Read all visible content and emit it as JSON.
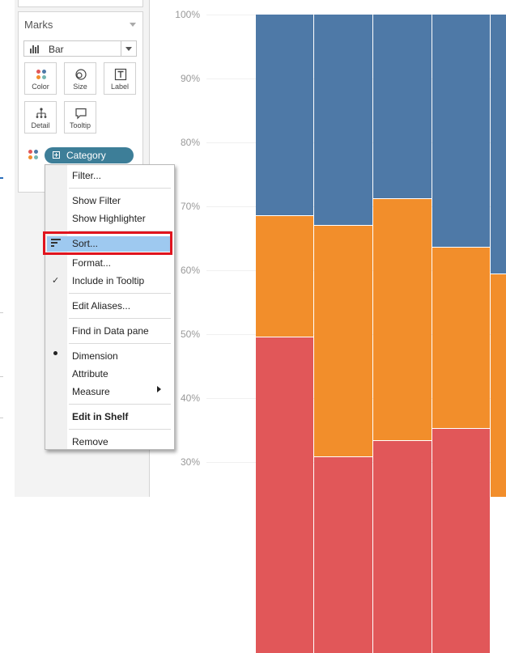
{
  "marks": {
    "title": "Marks",
    "mark_type": "Bar",
    "buttons": {
      "color": "Color",
      "size": "Size",
      "label": "Label",
      "detail": "Detail",
      "tooltip": "Tooltip"
    },
    "pill_label": "Category"
  },
  "context_menu": {
    "items": [
      "Filter...",
      "Show Filter",
      "Show Highlighter",
      "Sort...",
      "Format...",
      "Include in Tooltip",
      "Edit Aliases...",
      "Find in Data pane",
      "Dimension",
      "Attribute",
      "Measure",
      "Edit in Shelf",
      "Remove"
    ],
    "highlighted": "Sort..."
  },
  "colors": {
    "blue": "#4e79a7",
    "orange": "#f28e2b",
    "red": "#e15759",
    "pill": "#3d7e98",
    "highlight": "#9ec9f0",
    "callout": "#e0141e"
  },
  "chart_data": {
    "type": "bar",
    "stacked": true,
    "y_tick_labels": [
      "100%",
      "90%",
      "80%",
      "70%",
      "60%",
      "50%",
      "40%",
      "30%"
    ],
    "ylim_visible": [
      0.27,
      1.0
    ],
    "series": [
      {
        "color": "#e15759",
        "values": [
          0.495,
          0.308,
          0.333,
          0.352,
          0.0
        ]
      },
      {
        "color": "#f28e2b",
        "values": [
          0.19,
          0.362,
          0.379,
          0.284,
          0.0
        ]
      },
      {
        "color": "#4e79a7",
        "values": [
          0.315,
          0.33,
          0.288,
          0.364,
          0.0
        ]
      }
    ],
    "partial_last_bar_boundary": 0.594,
    "x_categories_visible": 5
  }
}
